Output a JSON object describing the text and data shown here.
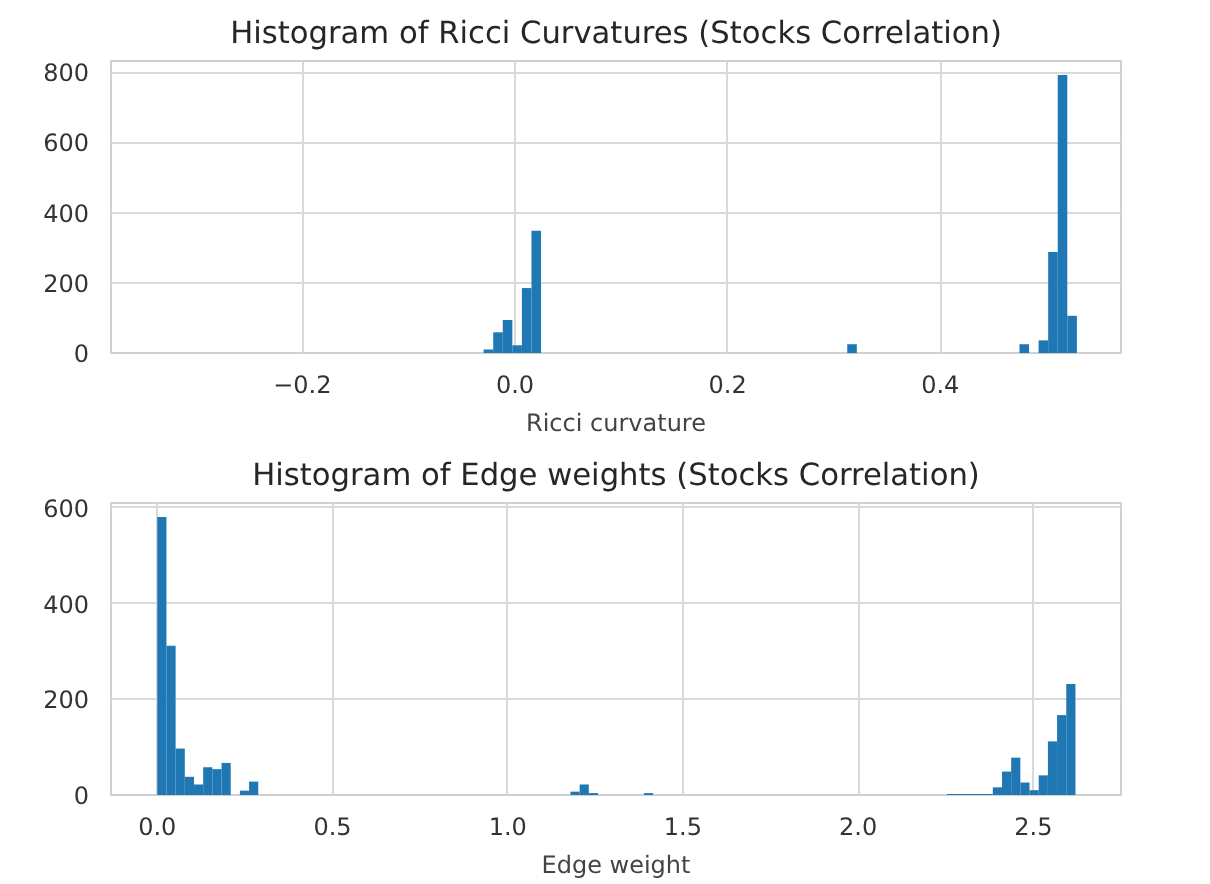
{
  "chart_data": [
    {
      "type": "histogram",
      "title": "Histogram of Ricci Curvatures (Stocks Correlation)",
      "xlabel": "Ricci curvature",
      "color": "#1f77b4",
      "bins": [
        -0.3355,
        -0.3265,
        -0.3175,
        -0.3085,
        -0.2995,
        -0.2905,
        -0.2815,
        -0.2725,
        -0.2635,
        -0.2545,
        -0.2455,
        -0.2365,
        -0.2275,
        -0.2185,
        -0.2095,
        -0.2005,
        -0.1915,
        -0.1825,
        -0.1735,
        -0.1645,
        -0.1555,
        -0.1465,
        -0.1375,
        -0.1285,
        -0.1195,
        -0.1105,
        -0.1015,
        -0.0925,
        -0.0835,
        -0.0745,
        -0.0655,
        -0.0565,
        -0.0475,
        -0.0385,
        -0.0295,
        -0.0205,
        -0.0115,
        -0.0025,
        0.0065,
        0.0155,
        0.0245,
        0.0335,
        0.0425,
        0.0515,
        0.0605,
        0.0695,
        0.0785,
        0.0875,
        0.0965,
        0.1055,
        0.1145,
        0.1235,
        0.1325,
        0.1415,
        0.1505,
        0.1595,
        0.1685,
        0.1775,
        0.1865,
        0.1955,
        0.2045,
        0.2135,
        0.2225,
        0.2315,
        0.2405,
        0.2495,
        0.2585,
        0.2675,
        0.2765,
        0.2855,
        0.2945,
        0.3035,
        0.3125,
        0.3215,
        0.3305,
        0.3395,
        0.3485,
        0.3575,
        0.3665,
        0.3755,
        0.3845,
        0.3935,
        0.4025,
        0.4115,
        0.4205,
        0.4295,
        0.4385,
        0.4475,
        0.4565,
        0.4655,
        0.4745,
        0.4835,
        0.4925,
        0.5015,
        0.5105,
        0.5195,
        0.5285
      ],
      "values": [
        0,
        0,
        0,
        0,
        0,
        0,
        0,
        0,
        0,
        0,
        0,
        0,
        0,
        0,
        0,
        0,
        0,
        0,
        0,
        0,
        0,
        0,
        0,
        0,
        0,
        0,
        0,
        0,
        0,
        0,
        0,
        0,
        0,
        0,
        10,
        59,
        94,
        22,
        185,
        348,
        0,
        0,
        0,
        0,
        0,
        0,
        0,
        0,
        0,
        0,
        0,
        0,
        0,
        0,
        0,
        0,
        0,
        0,
        0,
        0,
        0,
        0,
        0,
        0,
        0,
        0,
        0,
        0,
        0,
        0,
        0,
        0,
        25,
        0,
        0,
        0,
        0,
        0,
        0,
        0,
        0,
        0,
        0,
        0,
        0,
        0,
        0,
        0,
        0,
        0,
        25,
        0,
        36,
        288,
        792,
        106
      ],
      "xlim": [
        -0.38,
        0.57
      ],
      "xticks": [
        {
          "value": -0.2,
          "label": "−0.2"
        },
        {
          "value": 0,
          "label": "0.0"
        },
        0.2,
        0.4
      ],
      "ylim": [
        0,
        832
      ],
      "yticks": [
        0,
        200,
        400,
        600,
        800
      ],
      "grid": true
    },
    {
      "type": "histogram",
      "title": "Histogram of Edge weights (Stocks Correlation)",
      "xlabel": "Edge weight",
      "color": "#1f77b4",
      "bins": [
        0,
        0.0262,
        0.0524,
        0.0786,
        0.1048,
        0.131,
        0.1572,
        0.1834,
        0.2096,
        0.2358,
        0.262,
        0.2882,
        0.3144,
        0.3406,
        0.3668,
        0.393,
        0.4192,
        0.4454,
        0.4716,
        0.4978,
        0.524,
        0.5502,
        0.5764,
        0.6026,
        0.6288,
        0.655,
        0.6812,
        0.7074,
        0.7336,
        0.7598,
        0.786,
        0.8122,
        0.8384,
        0.8646,
        0.8908,
        0.917,
        0.9432,
        0.9694,
        0.9956,
        1.0218,
        1.048,
        1.0742,
        1.1004,
        1.1266,
        1.1528,
        1.179,
        1.2052,
        1.2314,
        1.2576,
        1.2838,
        1.31,
        1.3362,
        1.3624,
        1.3886,
        1.4148,
        1.441,
        1.4672,
        1.4934,
        1.5196,
        1.5458,
        1.572,
        1.5982,
        1.6244,
        1.6506,
        1.6768,
        1.703,
        1.7292,
        1.7554,
        1.7816,
        1.8078,
        1.834,
        1.8602,
        1.8864,
        1.9126,
        1.9388,
        1.965,
        1.9912,
        2.0174,
        2.0436,
        2.0698,
        2.096,
        2.1222,
        2.1484,
        2.1746,
        2.2008,
        2.227,
        2.2532,
        2.2794,
        2.3056,
        2.3318,
        2.358,
        2.3842,
        2.4104,
        2.4366,
        2.4628,
        2.489,
        2.5152,
        2.5414,
        2.5676,
        2.5938,
        2.62
      ],
      "values": [
        581,
        312,
        97,
        38,
        22,
        58,
        54,
        67,
        0,
        9,
        28,
        0,
        0,
        0,
        0,
        0,
        0,
        0,
        0,
        0,
        0,
        0,
        0,
        0,
        0,
        0,
        0,
        0,
        0,
        0,
        0,
        0,
        0,
        0,
        0,
        0,
        0,
        0,
        0,
        0,
        0,
        0,
        0,
        0,
        0,
        7,
        22,
        4,
        0,
        0,
        0,
        0,
        0,
        4,
        0,
        0,
        0,
        0,
        0,
        0,
        0,
        0,
        0,
        0,
        0,
        0,
        0,
        0,
        0,
        0,
        0,
        0,
        0,
        0,
        0,
        0,
        0,
        0,
        0,
        0,
        0,
        0,
        0,
        0,
        0,
        0,
        2,
        2,
        2,
        2,
        2,
        16,
        49,
        78,
        26,
        10,
        41,
        112,
        167,
        232
      ],
      "xlim": [
        -0.132,
        2.75
      ],
      "xticks": [
        {
          "value": 0,
          "label": "0.0"
        },
        0.5,
        {
          "value": 1,
          "label": "1.0"
        },
        1.5,
        {
          "value": 2,
          "label": "2.0"
        },
        2.5
      ],
      "ylim": [
        0,
        610
      ],
      "yticks": [
        0,
        200,
        400,
        600
      ],
      "grid": true
    }
  ]
}
